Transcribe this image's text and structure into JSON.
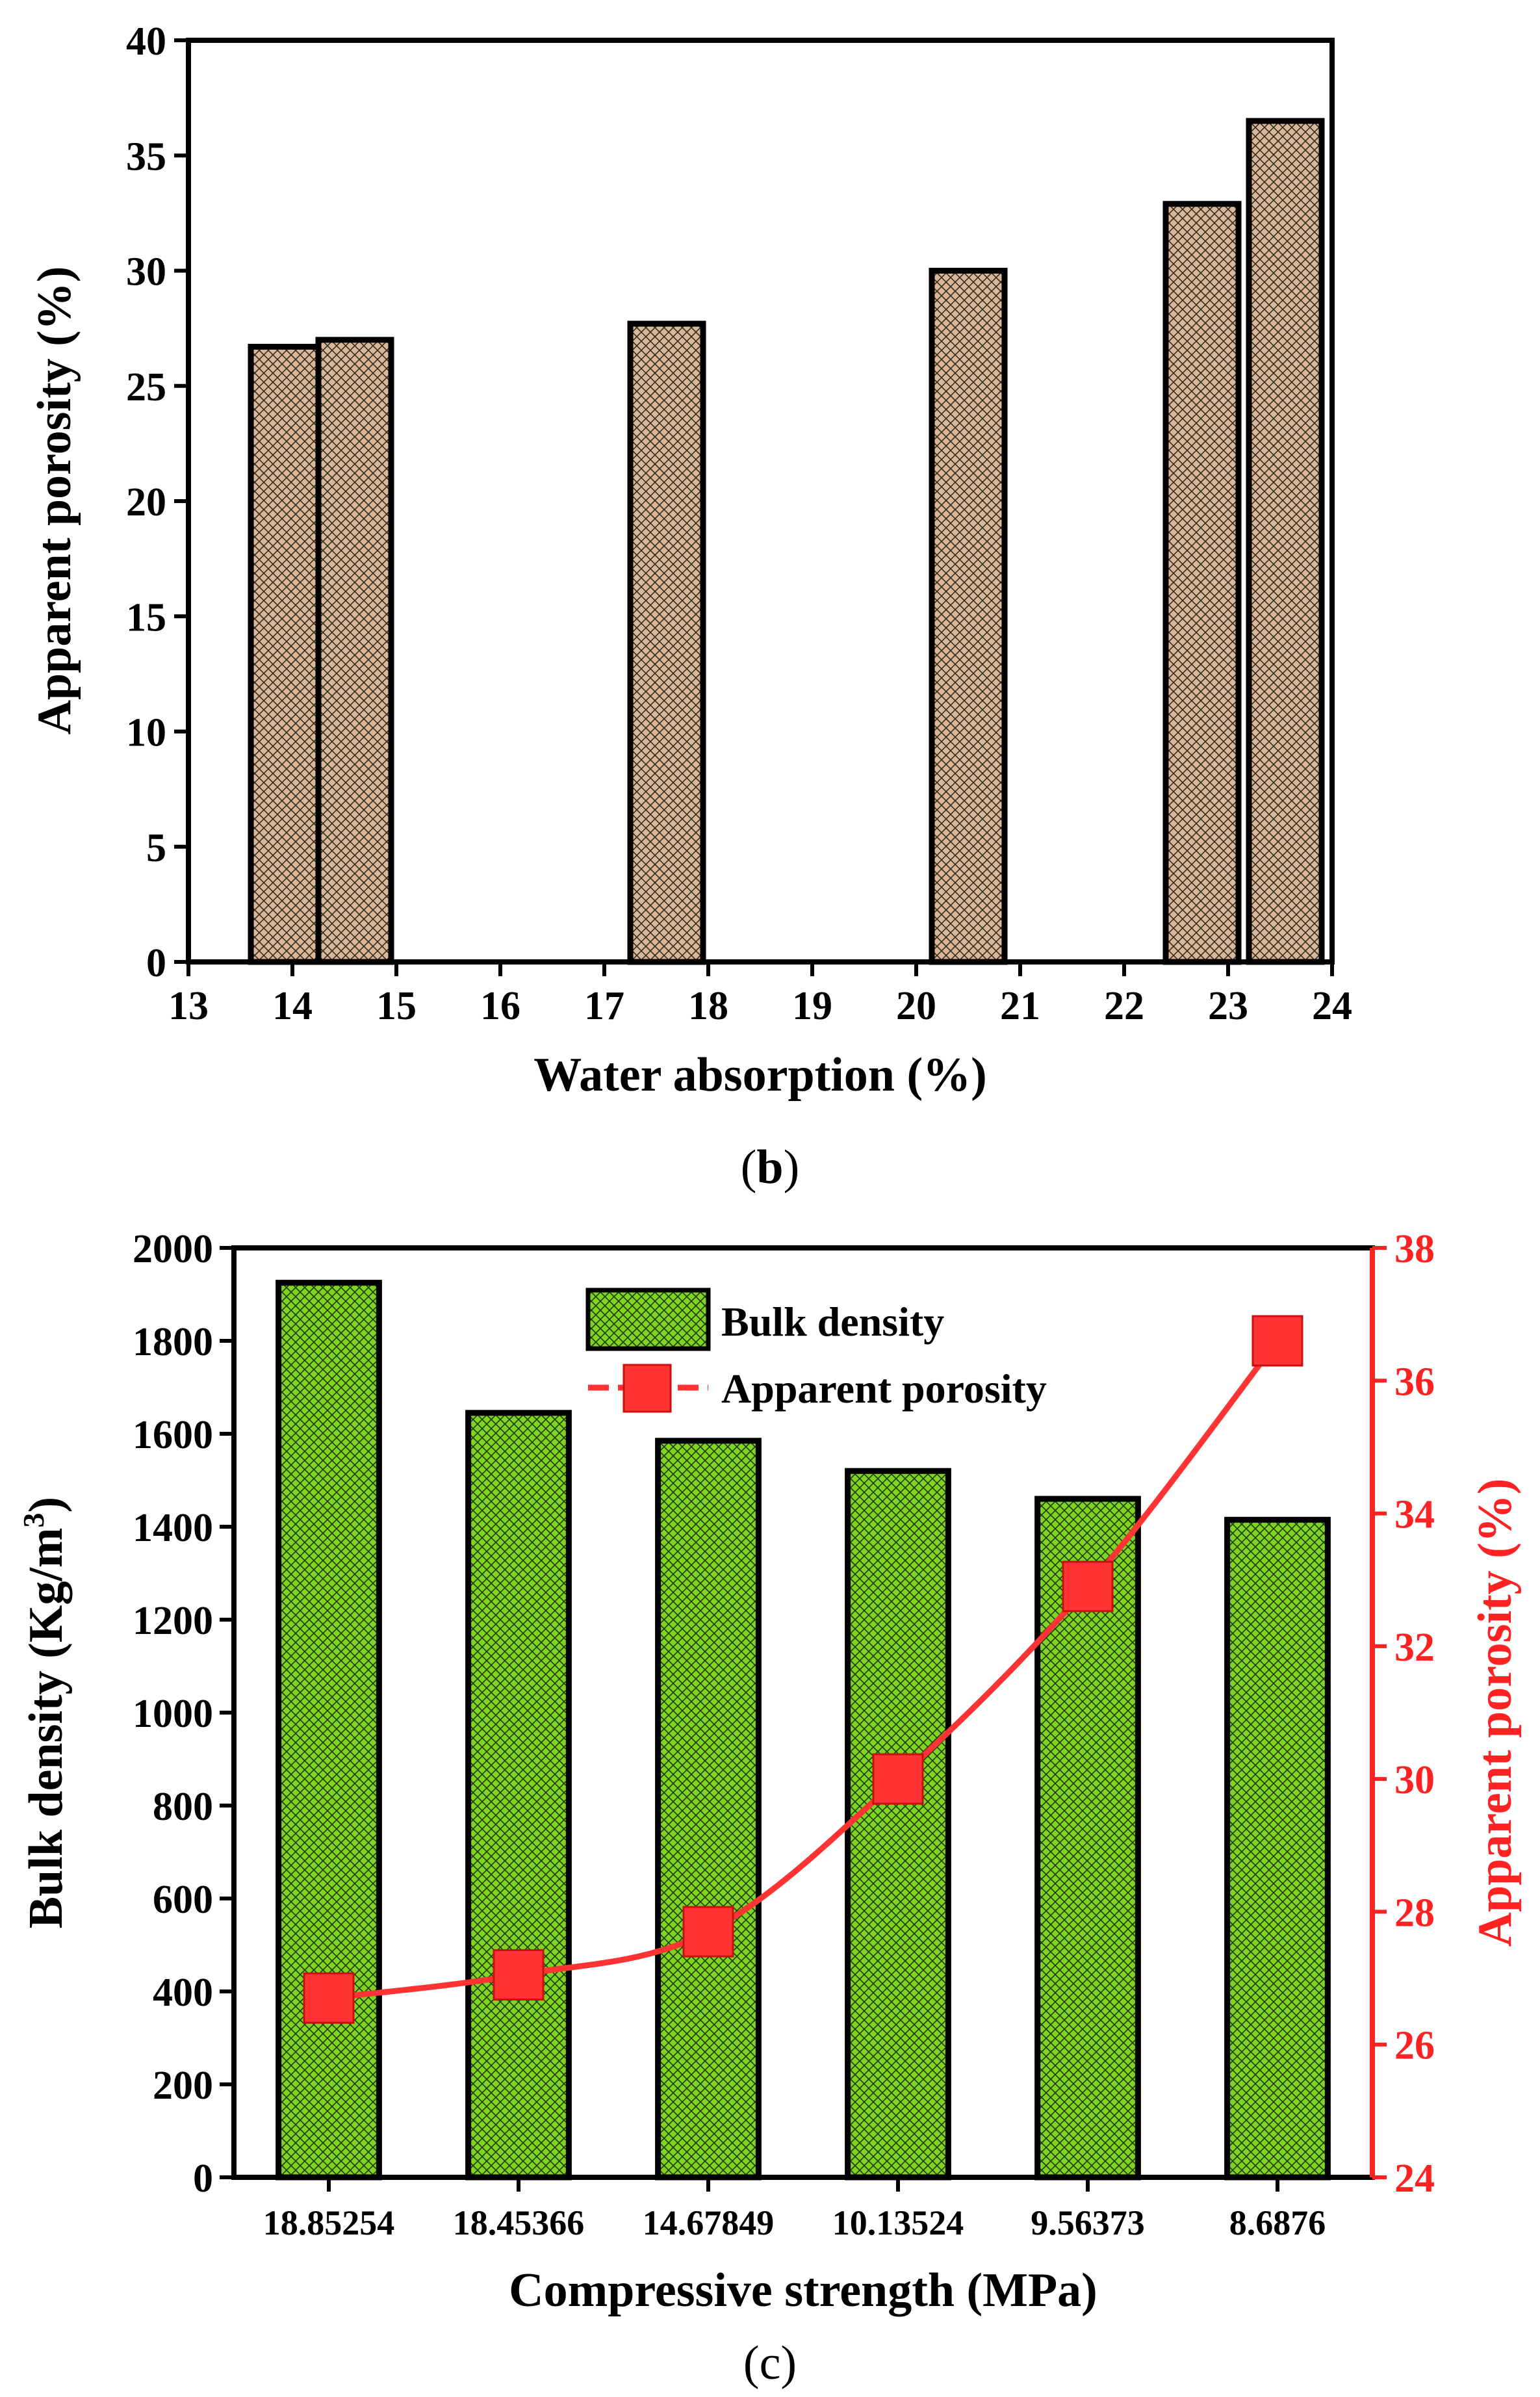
{
  "chart_data": [
    {
      "panel": "b",
      "type": "bar",
      "xlabel": "Water absorption (%)",
      "ylabel": "Apparent porosity (%)",
      "xticks": [
        "13",
        "14",
        "15",
        "16",
        "17",
        "18",
        "19",
        "20",
        "21",
        "22",
        "23",
        "24"
      ],
      "xlim": [
        13,
        24
      ],
      "yticks": [
        "0",
        "5",
        "10",
        "15",
        "20",
        "25",
        "30",
        "35",
        "40"
      ],
      "ylim": [
        0,
        40
      ],
      "bar_width": 0.7,
      "x": [
        13.95,
        14.6,
        17.6,
        20.5,
        22.75,
        23.55
      ],
      "values": [
        26.7,
        27.0,
        27.7,
        30.0,
        32.9,
        36.5
      ],
      "bar_color": "#D8B89A",
      "caption": "b"
    },
    {
      "panel": "c",
      "type": "bar+line",
      "xlabel": "Compressive strength (MPa)",
      "ylabel": "Bulk density (Kg/m",
      "ylabel_sup": "3",
      "ylabel_close": ")",
      "y2label": "Apparent porosity (%)",
      "categories": [
        "18.85254",
        "18.45366",
        "14.67849",
        "10.13524",
        "9.56373",
        "8.6876"
      ],
      "yticks": [
        "0",
        "200",
        "400",
        "600",
        "800",
        "1000",
        "1200",
        "1400",
        "1600",
        "1800",
        "2000"
      ],
      "ylim": [
        0,
        2000
      ],
      "y2ticks": [
        "24",
        "26",
        "28",
        "30",
        "32",
        "34",
        "36",
        "38"
      ],
      "y2lim": [
        24,
        38
      ],
      "series": [
        {
          "name": "Bulk density",
          "type": "bar",
          "axis": "left",
          "values": [
            1925,
            1645,
            1585,
            1520,
            1460,
            1415
          ],
          "color": "#7FD321"
        },
        {
          "name": "Apparent porosity",
          "type": "line",
          "axis": "right",
          "values": [
            26.7,
            27.05,
            27.7,
            30.0,
            32.9,
            36.6
          ],
          "color": "#FF3333"
        }
      ],
      "legend": [
        "Bulk density",
        "Apparent porosity"
      ],
      "caption": "c"
    }
  ]
}
